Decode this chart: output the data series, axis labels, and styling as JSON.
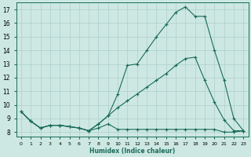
{
  "title": "",
  "xlabel": "Humidex (Indice chaleur)",
  "bg_color": "#cde8e2",
  "grid_color": "#aecfca",
  "line_color": "#1a6b5a",
  "line1_y": [
    9.5,
    8.8,
    8.3,
    8.5,
    8.5,
    8.4,
    8.3,
    8.1,
    8.6,
    9.2,
    10.8,
    12.9,
    13.0,
    14.0,
    15.0,
    15.9,
    16.8,
    17.2,
    16.5,
    16.5,
    14.0,
    11.8,
    9.0,
    8.1
  ],
  "line2_y": [
    9.5,
    8.8,
    8.3,
    8.5,
    8.5,
    8.4,
    8.3,
    8.1,
    8.6,
    9.2,
    9.8,
    10.3,
    10.8,
    11.3,
    11.8,
    12.3,
    12.9,
    13.4,
    13.5,
    11.8,
    10.2,
    8.9,
    8.1,
    8.1
  ],
  "line3_y": [
    9.5,
    8.8,
    8.3,
    8.5,
    8.5,
    8.4,
    8.3,
    8.1,
    8.3,
    8.6,
    8.2,
    8.2,
    8.2,
    8.2,
    8.2,
    8.2,
    8.2,
    8.2,
    8.2,
    8.2,
    8.2,
    8.0,
    8.0,
    8.1
  ],
  "xlim": [
    -0.5,
    23.5
  ],
  "ylim": [
    7.7,
    17.5
  ],
  "yticks": [
    8,
    9,
    10,
    11,
    12,
    13,
    14,
    15,
    16,
    17
  ],
  "xticks": [
    0,
    1,
    2,
    3,
    4,
    5,
    6,
    7,
    8,
    9,
    10,
    11,
    12,
    13,
    14,
    15,
    16,
    17,
    18,
    19,
    20,
    21,
    22,
    23
  ]
}
